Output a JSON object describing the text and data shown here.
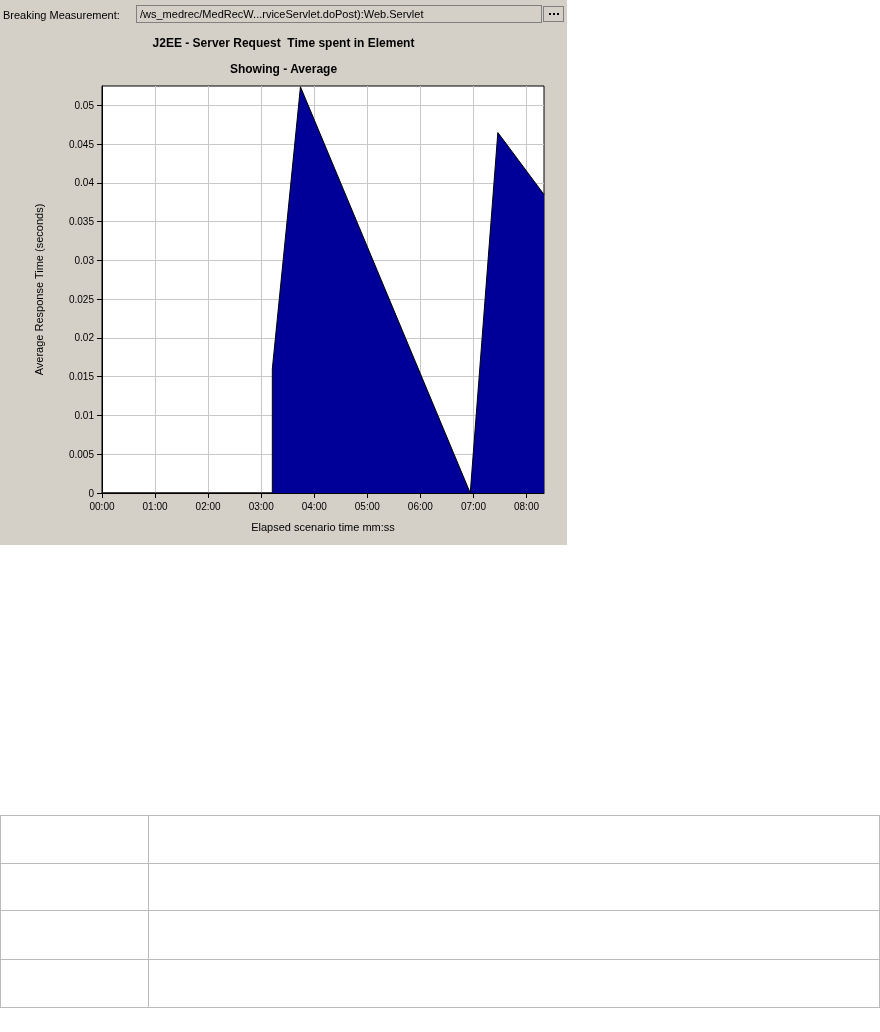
{
  "chart_data": {
    "type": "area",
    "title": "J2EE - Server Request  Time spent in Element",
    "subtitle": "Showing - Average",
    "xlabel": "Elapsed scenario time mm:ss",
    "ylabel": "Average Response Time (seconds)",
    "annotations": [
      "Breaking Measurement:",
      "/ws_medrec/MedRecW...rviceServlet.doPost):Web.Servlet"
    ],
    "series": [
      {
        "color": "#000099",
        "x": [
          0,
          3.21,
          3.21,
          3.74,
          6.94,
          7.46,
          8.33
        ],
        "values": [
          0,
          0,
          0.016,
          0.0524,
          0,
          0.0465,
          0.0385
        ]
      }
    ],
    "xlim": [
      0,
      8.33
    ],
    "xticks": [
      {
        "value": 0,
        "label": "00:00"
      },
      {
        "value": 1,
        "label": "01:00"
      },
      {
        "value": 2,
        "label": "02:00"
      },
      {
        "value": 3,
        "label": "03:00"
      },
      {
        "value": 4,
        "label": "04:00"
      },
      {
        "value": 5,
        "label": "05:00"
      },
      {
        "value": 6,
        "label": "06:00"
      },
      {
        "value": 7,
        "label": "07:00"
      },
      {
        "value": 8,
        "label": "08:00"
      }
    ],
    "ylim": [
      0,
      0.0525
    ],
    "yticks": [
      0,
      0.005,
      0.01,
      0.015,
      0.02,
      0.025,
      0.03,
      0.035,
      0.04,
      0.045,
      0.05
    ],
    "grid": true
  }
}
